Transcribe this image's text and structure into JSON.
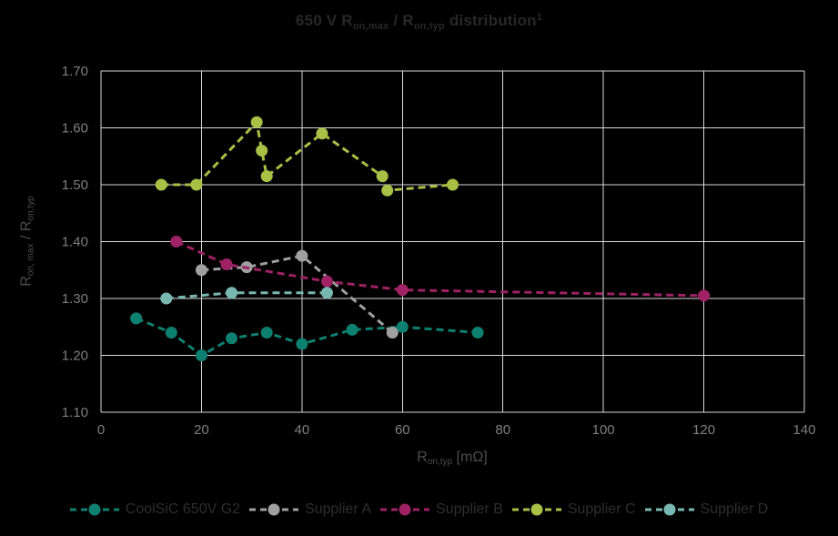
{
  "title": {
    "part1": "650 V R",
    "sub1": "on,max",
    "part2": " / R",
    "sub2": "on,typ",
    "part3": " distribution",
    "sup": "1"
  },
  "axes": {
    "x_label": {
      "part1": "R",
      "sub": "on,typ",
      "part2": " [mΩ]"
    },
    "y_label": {
      "part1": "R",
      "sub1": "on, max",
      "part2": " / R",
      "sub2": "on,typ"
    }
  },
  "colors": {
    "background": "#000000",
    "grid": "#d9d9d9",
    "tick_text": "#7f7f7f",
    "axis_label_text": "#4d4d4d",
    "title_text": "#282828",
    "legend_text": "#2e2e2e"
  },
  "chart_data": {
    "type": "line",
    "title": "650 V Ron,max / Ron,typ distribution¹",
    "xlabel": "Ron,typ [mΩ]",
    "ylabel": "Ron, max / Ron,typ",
    "xlim": [
      0,
      140
    ],
    "ylim": [
      1.1,
      1.7
    ],
    "x_ticks": [
      0,
      20,
      40,
      60,
      80,
      100,
      120,
      140
    ],
    "y_ticks": [
      1.1,
      1.2,
      1.3,
      1.4,
      1.5,
      1.6,
      1.7
    ],
    "grid": true,
    "line_style": "dashed",
    "marker": "circle",
    "legend_position": "bottom",
    "series": [
      {
        "name": "CoolSiC 650V G2",
        "color": "#0e8070",
        "points": [
          [
            7,
            1.265
          ],
          [
            14,
            1.24
          ],
          [
            20,
            1.2
          ],
          [
            26,
            1.23
          ],
          [
            33,
            1.24
          ],
          [
            40,
            1.22
          ],
          [
            50,
            1.245
          ],
          [
            60,
            1.25
          ],
          [
            75,
            1.24
          ]
        ]
      },
      {
        "name": "Supplier A",
        "color": "#a0a0a0",
        "points": [
          [
            20,
            1.35
          ],
          [
            29,
            1.355
          ],
          [
            40,
            1.375
          ],
          [
            58,
            1.24
          ]
        ]
      },
      {
        "name": "Supplier B",
        "color": "#9e2264",
        "points": [
          [
            15,
            1.4
          ],
          [
            25,
            1.36
          ],
          [
            45,
            1.33
          ],
          [
            60,
            1.315
          ],
          [
            120,
            1.305
          ]
        ]
      },
      {
        "name": "Supplier C",
        "color": "#aabf45",
        "points": [
          [
            12,
            1.5
          ],
          [
            19,
            1.5
          ],
          [
            31,
            1.61
          ],
          [
            32,
            1.56
          ],
          [
            33,
            1.515
          ],
          [
            44,
            1.59
          ],
          [
            56,
            1.515
          ],
          [
            57,
            1.49
          ],
          [
            70,
            1.5
          ]
        ]
      },
      {
        "name": "Supplier D",
        "color": "#79b8b1",
        "points": [
          [
            13,
            1.3
          ],
          [
            26,
            1.31
          ],
          [
            45,
            1.31
          ]
        ]
      }
    ]
  }
}
